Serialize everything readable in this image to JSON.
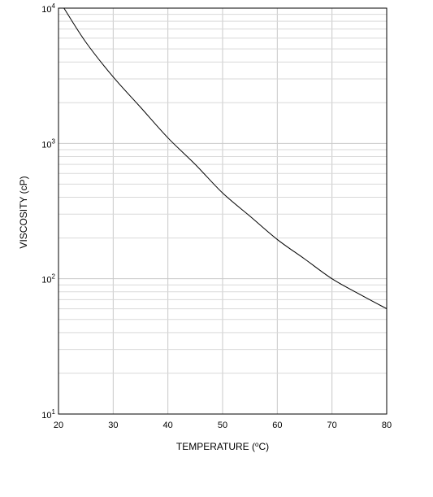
{
  "chart_data": {
    "type": "line",
    "title": "",
    "xlabel": "TEMPERATURE (",
    "xlabel_super": "o",
    "xlabel_end": "C)",
    "ylabel": "VISCOSITY (cP)",
    "xlim": [
      20,
      80
    ],
    "ylim": [
      10,
      10000
    ],
    "yscale": "log",
    "grid": true,
    "x_ticks": [
      "20",
      "30",
      "40",
      "50",
      "60",
      "70",
      "80"
    ],
    "y_ticks": [
      {
        "base": "10",
        "exp": "1"
      },
      {
        "base": "10",
        "exp": "2"
      },
      {
        "base": "10",
        "exp": "3"
      },
      {
        "base": "10",
        "exp": "4"
      }
    ],
    "series": [
      {
        "color": "#000000",
        "x": [
          21,
          25,
          30,
          35,
          40,
          45,
          50,
          55,
          60,
          65,
          70,
          75,
          80
        ],
        "y": [
          10000,
          5600,
          3100,
          1850,
          1100,
          700,
          430,
          290,
          195,
          140,
          100,
          77,
          60
        ]
      }
    ]
  }
}
